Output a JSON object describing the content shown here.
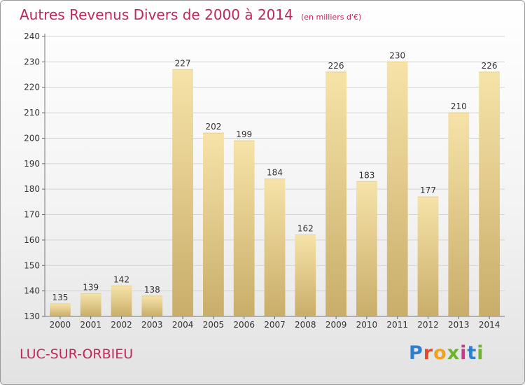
{
  "title": "Autres Revenus Divers de 2000 à 2014",
  "subtitle": "(en milliers d'€)",
  "commune": "LUC-SUR-ORBIEU",
  "brand": {
    "letters": [
      "P",
      "r",
      "o",
      "x",
      "i",
      "t",
      "i"
    ],
    "colors": [
      "#2f7fd0",
      "#e8462a",
      "#f2a11c",
      "#6fb32b",
      "#c83a8e",
      "#2f7fd0",
      "#6fb32b"
    ]
  },
  "colors": {
    "bar_light": "#f6e3a8",
    "bar_dark": "#c9ad6a",
    "accent": "#c0275a"
  },
  "chart_data": {
    "type": "bar",
    "title": "Autres Revenus Divers de 2000 à 2014",
    "subtitle": "(en milliers d'€)",
    "categories": [
      "2000",
      "2001",
      "2002",
      "2003",
      "2004",
      "2005",
      "2006",
      "2007",
      "2008",
      "2009",
      "2010",
      "2011",
      "2012",
      "2013",
      "2014"
    ],
    "values": [
      135,
      139,
      142,
      138,
      227,
      202,
      199,
      184,
      162,
      226,
      183,
      230,
      177,
      210,
      226
    ],
    "ylim": [
      130,
      240
    ],
    "yticks": [
      130,
      140,
      150,
      160,
      170,
      180,
      190,
      200,
      210,
      220,
      230,
      240
    ],
    "grid": true,
    "legend": "none"
  }
}
